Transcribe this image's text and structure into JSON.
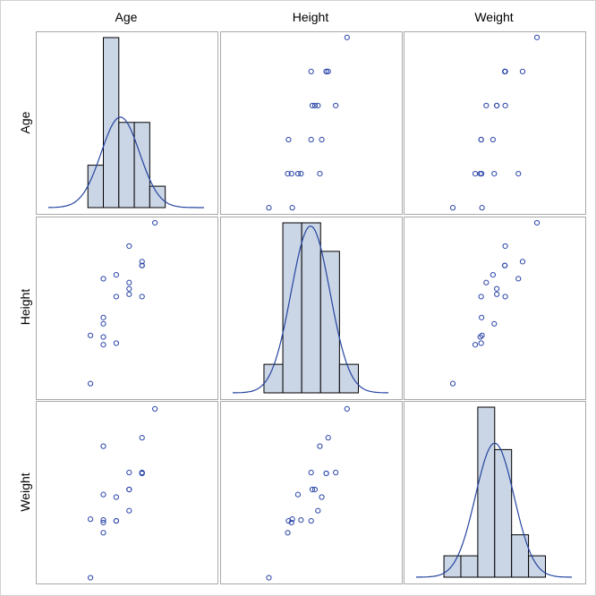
{
  "chart_data": {
    "type": "scatter-matrix",
    "variables": [
      "Age",
      "Height",
      "Weight"
    ],
    "x_ranges": {
      "Age": [
        6.76,
        20.85
      ],
      "Height": [
        38.4,
        86.5
      ],
      "Weight": [
        -7.7,
        207.1
      ]
    },
    "y_ranges": {
      "Age": [
        10.82,
        16.18
      ],
      "Height": [
        49.3,
        72.8
      ],
      "Weight": [
        47.1,
        154.7
      ]
    },
    "observations": [
      [
        14,
        69.0,
        112.5
      ],
      [
        13,
        56.5,
        84.0
      ],
      [
        13,
        65.3,
        98.0
      ],
      [
        14,
        62.8,
        102.5
      ],
      [
        14,
        63.5,
        102.5
      ],
      [
        12,
        57.3,
        83.0
      ],
      [
        12,
        59.8,
        84.5
      ],
      [
        15,
        62.5,
        112.5
      ],
      [
        13,
        62.5,
        84.0
      ],
      [
        12,
        59.0,
        99.5
      ],
      [
        11,
        51.3,
        50.5
      ],
      [
        14,
        64.3,
        90.0
      ],
      [
        12,
        56.3,
        77.0
      ],
      [
        15,
        66.5,
        112.0
      ],
      [
        16,
        72.0,
        150.0
      ],
      [
        12,
        64.8,
        128.0
      ],
      [
        15,
        67.0,
        133.0
      ],
      [
        11,
        57.5,
        85.0
      ],
      [
        15,
        66.5,
        112.0
      ]
    ],
    "histograms": {
      "Age": {
        "edges": [
          10.8,
          12.0,
          13.2,
          14.4,
          15.6,
          16.8
        ],
        "percent": [
          10.5,
          42.1,
          21.1,
          21.1,
          5.3
        ],
        "normal": {
          "mean": 13.32,
          "sd": 1.49,
          "peak_percent": 22.4
        }
      },
      "Height": {
        "edges": [
          50,
          55,
          60,
          65,
          70,
          75
        ],
        "percent": [
          5.3,
          31.6,
          31.6,
          26.3,
          5.3
        ],
        "normal": {
          "mean": 62.34,
          "sd": 5.13,
          "peak_percent": 31.0
        }
      },
      "Weight": {
        "edges": [
          40,
          60,
          80,
          100,
          120,
          140,
          160
        ],
        "percent": [
          5.3,
          5.3,
          42.1,
          31.6,
          10.5,
          5.3
        ],
        "normal": {
          "mean": 100.03,
          "sd": 22.77,
          "peak_percent": 33.2
        }
      }
    },
    "colors": {
      "marker": "#2a45a8",
      "curve": "#2545a0",
      "bar_fill": "#cad5e5",
      "bar_edge": "#000000",
      "panel_border": "#a9a9a9"
    },
    "grid": false
  }
}
